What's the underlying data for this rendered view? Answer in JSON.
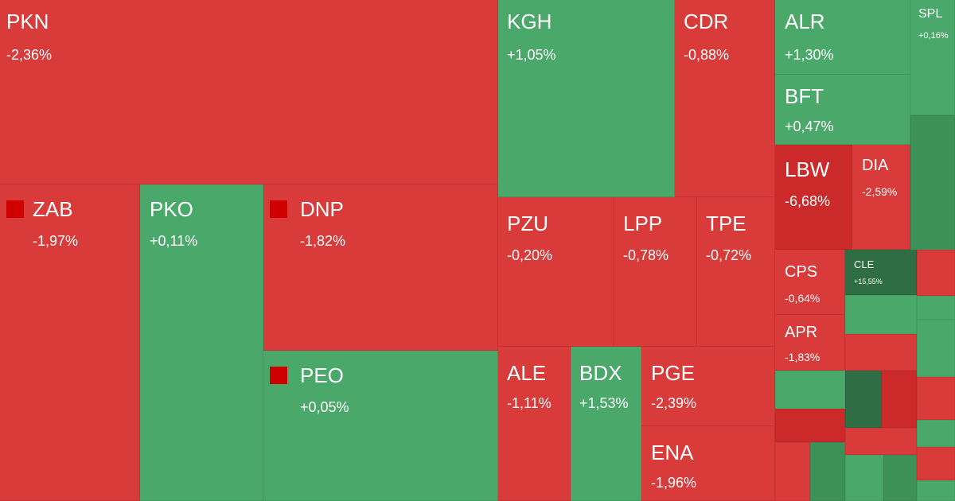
{
  "colors": {
    "down": "#d93a3a",
    "down_strong": "#cc2a2a",
    "down_light": "#e05050",
    "up": "#4aa86b",
    "up_dark": "#2f6d44",
    "up_mid": "#3d9058",
    "marker": "#d10000"
  },
  "chart_data": {
    "type": "treemap",
    "items": [
      {
        "symbol": "PKN",
        "change": "-2,36%",
        "value": -2.36
      },
      {
        "symbol": "KGH",
        "change": "+1,05%",
        "value": 1.05
      },
      {
        "symbol": "CDR",
        "change": "-0,88%",
        "value": -0.88
      },
      {
        "symbol": "ALR",
        "change": "+1,30%",
        "value": 1.3
      },
      {
        "symbol": "SPL",
        "change": "+0,16%",
        "value": 0.16
      },
      {
        "symbol": "BFT",
        "change": "+0,47%",
        "value": 0.47
      },
      {
        "symbol": "LBW",
        "change": "-6,68%",
        "value": -6.68
      },
      {
        "symbol": "DIA",
        "change": "-2,59%",
        "value": -2.59
      },
      {
        "symbol": "ZAB",
        "change": "-1,97%",
        "value": -1.97,
        "marker": true
      },
      {
        "symbol": "PKO",
        "change": "+0,11%",
        "value": 0.11
      },
      {
        "symbol": "DNP",
        "change": "-1,82%",
        "value": -1.82,
        "marker": true
      },
      {
        "symbol": "PZU",
        "change": "-0,20%",
        "value": -0.2
      },
      {
        "symbol": "LPP",
        "change": "-0,78%",
        "value": -0.78
      },
      {
        "symbol": "TPE",
        "change": "-0,72%",
        "value": -0.72
      },
      {
        "symbol": "CPS",
        "change": "-0,64%",
        "value": -0.64
      },
      {
        "symbol": "CLE",
        "change": "+15,55%",
        "value": 15.55
      },
      {
        "symbol": "APR",
        "change": "-1,83%",
        "value": -1.83
      },
      {
        "symbol": "PEO",
        "change": "+0,05%",
        "value": 0.05,
        "marker": true
      },
      {
        "symbol": "ALE",
        "change": "-1,11%",
        "value": -1.11
      },
      {
        "symbol": "BDX",
        "change": "+1,53%",
        "value": 1.53
      },
      {
        "symbol": "PGE",
        "change": "-2,39%",
        "value": -2.39
      },
      {
        "symbol": "ENA",
        "change": "-1,96%",
        "value": -1.96
      }
    ]
  }
}
